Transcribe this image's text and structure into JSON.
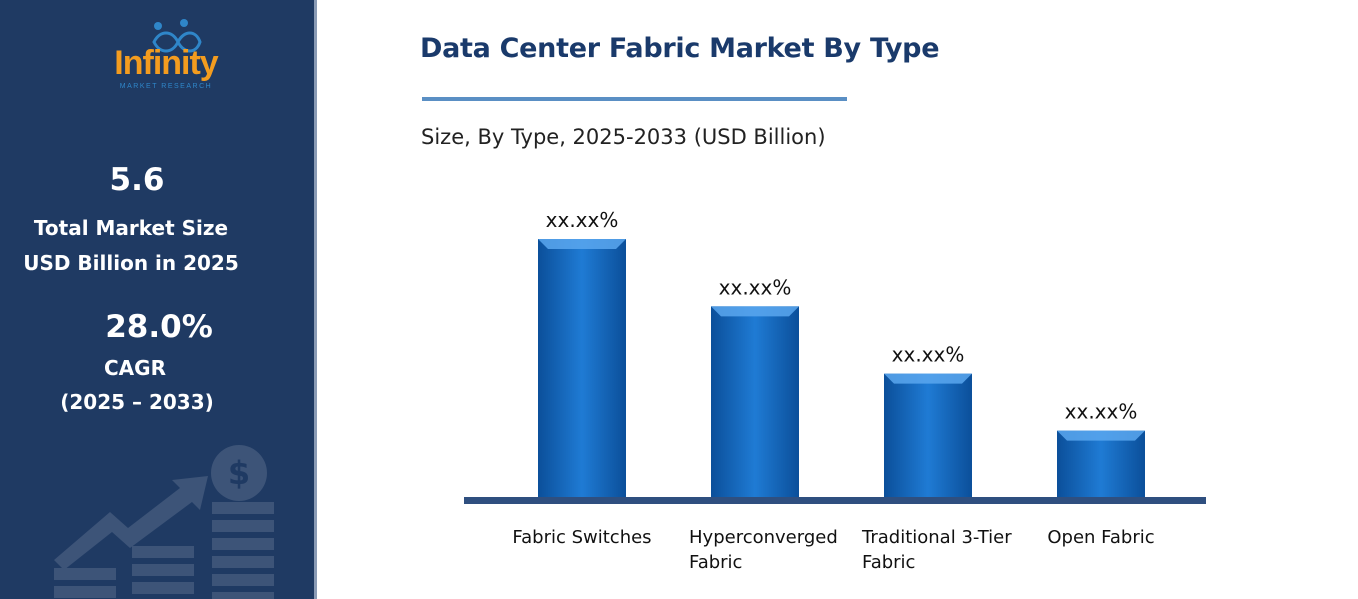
{
  "brand": {
    "name": "Infinity",
    "tagline": "MARKET RESEARCH",
    "primary_color": "#f39c1f",
    "icon": "infinity-people-icon"
  },
  "stats": {
    "market_size_value": "5.6",
    "market_size_label_1": "Total Market Size",
    "market_size_label_2": "USD Billion in 2025",
    "cagr_value": "28.0%",
    "cagr_label_1": "CAGR",
    "cagr_label_2": "(2025 – 2033)"
  },
  "decor": {
    "icon": "dollar-growth-icon",
    "color": "#3d5478"
  },
  "colors": {
    "panel": "#1f3a63",
    "bar": "#1f7bd4",
    "bar_dark": "#0b4f9a",
    "axis": "#2f4f7f"
  },
  "chart_data": {
    "type": "bar",
    "title": "Data Center Fabric Market By Type",
    "subtitle": "Size, By Type, 2025-2033 (USD Billion)",
    "xlabel": "",
    "ylabel": "",
    "categories": [
      [
        "Fabric Switches"
      ],
      [
        "Hyperconverged",
        "Fabric"
      ],
      [
        "Traditional 3-Tier",
        "Fabric"
      ],
      [
        "Open Fabric"
      ]
    ],
    "values": [
      100,
      74,
      48,
      26
    ],
    "value_labels": [
      "xx.xx%",
      "xx.xx%",
      "xx.xx%",
      "xx.xx%"
    ],
    "ylim": [
      0,
      100
    ],
    "grid": false,
    "legend": "none"
  }
}
